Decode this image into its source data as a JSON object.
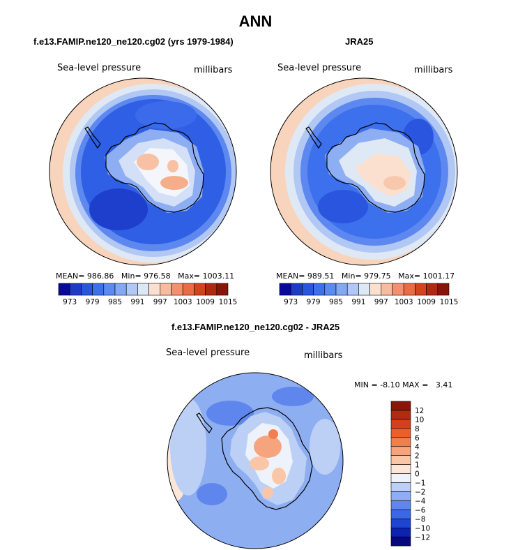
{
  "figure": {
    "title": "ANN"
  },
  "chart_data": [
    {
      "type": "heatmap",
      "projection": "south-polar-stereographic",
      "title": "f.e13.FAMIP.ne120_ne120.cg02 (yrs 1979-1984)",
      "variable_label": "Sea-level pressure",
      "units_label": "millibars",
      "stats": {
        "mean_label": "MEAN=",
        "mean": "986.86",
        "min_label": "Min=",
        "min": "976.58",
        "max_label": "Max=",
        "max": "1003.11"
      },
      "colorbar": {
        "orientation": "horizontal",
        "tick_labels": [
          "973",
          "979",
          "985",
          "991",
          "997",
          "1003",
          "1009",
          "1015"
        ],
        "colors": [
          "#08089c",
          "#1c3cc8",
          "#2a55de",
          "#3d70ec",
          "#5b8af2",
          "#83a9f4",
          "#b0c8f6",
          "#dde8f6",
          "#fbe0cf",
          "#f7bba0",
          "#f49070",
          "#ec6a44",
          "#d5421e",
          "#b02810",
          "#8a1408"
        ]
      }
    },
    {
      "type": "heatmap",
      "projection": "south-polar-stereographic",
      "title": "JRA25",
      "variable_label": "Sea-level pressure",
      "units_label": "millibars",
      "stats": {
        "mean_label": "MEAN=",
        "mean": "989.51",
        "min_label": "Min=",
        "min": "979.75",
        "max_label": "Max=",
        "max": "1001.17"
      },
      "colorbar": {
        "orientation": "horizontal",
        "tick_labels": [
          "973",
          "979",
          "985",
          "991",
          "997",
          "1003",
          "1009",
          "1015"
        ],
        "colors": [
          "#08089c",
          "#1c3cc8",
          "#2a55de",
          "#3d70ec",
          "#5b8af2",
          "#83a9f4",
          "#b0c8f6",
          "#dde8f6",
          "#fbe0cf",
          "#f7bba0",
          "#f49070",
          "#ec6a44",
          "#d5421e",
          "#b02810",
          "#8a1408"
        ]
      }
    },
    {
      "type": "heatmap",
      "projection": "south-polar-stereographic",
      "title": "f.e13.FAMIP.ne120_ne120.cg02 - JRA25",
      "variable_label": "Sea-level pressure",
      "units_label": "millibars",
      "stats": {
        "min_label": "MIN =",
        "min": "-8.10",
        "max_label": "MAX =",
        "max": "3.41"
      },
      "colorbar": {
        "orientation": "vertical",
        "tick_labels": [
          "12",
          "10",
          "8",
          "6",
          "4",
          "2",
          "1",
          "0",
          "−1",
          "−2",
          "−4",
          "−6",
          "−8",
          "−10",
          "−12"
        ],
        "colors": [
          "#8c1408",
          "#b22a10",
          "#d44018",
          "#ec5e2c",
          "#f27e4e",
          "#f6a47e",
          "#f9c6a8",
          "#fde6d8",
          "#eef2fa",
          "#bcd0f6",
          "#8eaef2",
          "#5f86ec",
          "#3b66e4",
          "#1e44d4",
          "#0c22b0",
          "#07077f"
        ]
      }
    }
  ]
}
